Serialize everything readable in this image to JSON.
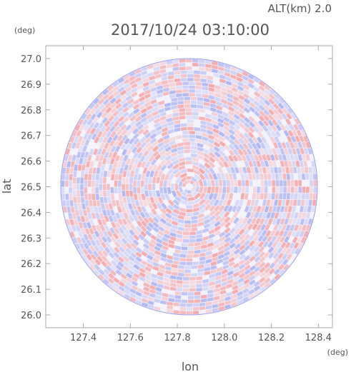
{
  "header": {
    "altitude_label": "ALT(km)  2.0",
    "timestamp": "2017/10/24  03:10:00"
  },
  "chart_data": {
    "type": "heatmap",
    "title": "2017/10/24  03:10:00",
    "xlabel": "lon",
    "ylabel": "lat",
    "x_unit": "(deg)",
    "y_unit": "(deg)",
    "xlim": [
      127.24,
      128.46
    ],
    "ylim": [
      25.95,
      27.05
    ],
    "x_ticks": [
      "127.4",
      "127.6",
      "127.8",
      "128.0",
      "128.2",
      "128.4"
    ],
    "x_tick_values": [
      127.4,
      127.6,
      127.8,
      128.0,
      128.2,
      128.4
    ],
    "y_ticks": [
      "26.0",
      "26.1",
      "26.2",
      "26.3",
      "26.4",
      "26.5",
      "26.6",
      "26.7",
      "26.8",
      "26.9",
      "27.0"
    ],
    "y_tick_values": [
      26.0,
      26.1,
      26.2,
      26.3,
      26.4,
      26.5,
      26.6,
      26.7,
      26.8,
      26.9,
      27.0
    ],
    "radar_center": [
      127.85,
      26.5
    ],
    "radar_range_deg_lat": 0.5,
    "colors": {
      "positive": "#f4a3a3",
      "negative": "#a9b2f0",
      "neutral": "#f4f2fb",
      "axis": "#aaaaaa"
    }
  }
}
